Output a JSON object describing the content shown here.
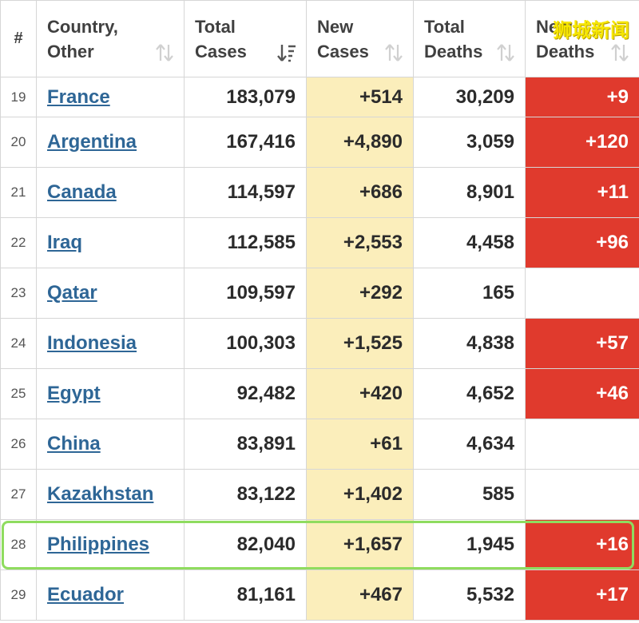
{
  "header": {
    "rank": "#",
    "country_line1": "Country,",
    "country_line2": "Other",
    "total_cases_line1": "Total",
    "total_cases_line2": "Cases",
    "new_cases_line1": "New",
    "new_cases_line2": "Cases",
    "total_deaths_line1": "Total",
    "total_deaths_line2": "Deaths",
    "new_deaths_line1": "New",
    "new_deaths_line2": "Deaths"
  },
  "watermark": "狮城新闻",
  "colors": {
    "link": "#2e6696",
    "new_cases_bg": "#fbeebb",
    "new_deaths_bg": "#e03a2d",
    "highlight": "#8fdc5f"
  },
  "highlight_country": "Philippines",
  "rows": [
    {
      "rank": "19",
      "country": "France",
      "total_cases": "183,079",
      "new_cases": "+514",
      "total_deaths": "30,209",
      "new_deaths": "+9"
    },
    {
      "rank": "20",
      "country": "Argentina",
      "total_cases": "167,416",
      "new_cases": "+4,890",
      "total_deaths": "3,059",
      "new_deaths": "+120"
    },
    {
      "rank": "21",
      "country": "Canada",
      "total_cases": "114,597",
      "new_cases": "+686",
      "total_deaths": "8,901",
      "new_deaths": "+11"
    },
    {
      "rank": "22",
      "country": "Iraq",
      "total_cases": "112,585",
      "new_cases": "+2,553",
      "total_deaths": "4,458",
      "new_deaths": "+96"
    },
    {
      "rank": "23",
      "country": "Qatar",
      "total_cases": "109,597",
      "new_cases": "+292",
      "total_deaths": "165",
      "new_deaths": ""
    },
    {
      "rank": "24",
      "country": "Indonesia",
      "total_cases": "100,303",
      "new_cases": "+1,525",
      "total_deaths": "4,838",
      "new_deaths": "+57"
    },
    {
      "rank": "25",
      "country": "Egypt",
      "total_cases": "92,482",
      "new_cases": "+420",
      "total_deaths": "4,652",
      "new_deaths": "+46"
    },
    {
      "rank": "26",
      "country": "China",
      "total_cases": "83,891",
      "new_cases": "+61",
      "total_deaths": "4,634",
      "new_deaths": ""
    },
    {
      "rank": "27",
      "country": "Kazakhstan",
      "total_cases": "83,122",
      "new_cases": "+1,402",
      "total_deaths": "585",
      "new_deaths": ""
    },
    {
      "rank": "28",
      "country": "Philippines",
      "total_cases": "82,040",
      "new_cases": "+1,657",
      "total_deaths": "1,945",
      "new_deaths": "+16"
    },
    {
      "rank": "29",
      "country": "Ecuador",
      "total_cases": "81,161",
      "new_cases": "+467",
      "total_deaths": "5,532",
      "new_deaths": "+17"
    }
  ]
}
